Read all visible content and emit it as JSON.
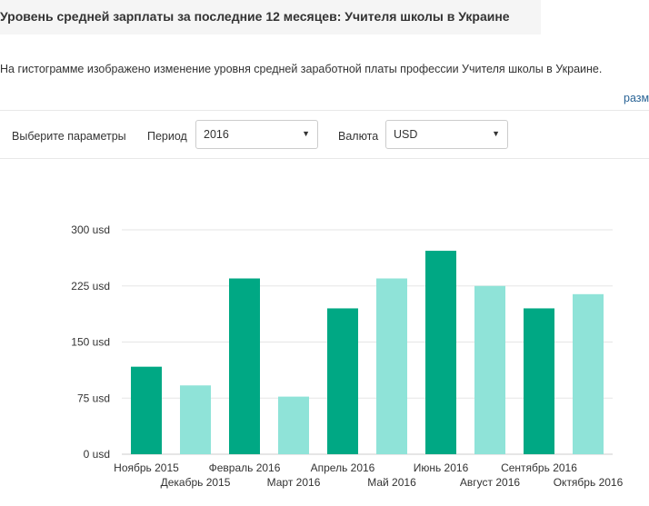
{
  "header": {
    "title": "Уровень средней зарплаты за последние 12 месяцев: Учителя школы в Украине",
    "description": "На гистограмме изображено изменение уровня средней заработной платы профессии Учителя школы в Украине.",
    "size_link": "разм"
  },
  "params": {
    "label": "Выберите параметры",
    "period_label": "Период",
    "period_value": "2016",
    "currency_label": "Валюта",
    "currency_value": "USD"
  },
  "icons": {
    "dropdown": "chevron-down-icon"
  },
  "colors": {
    "bar_dark": "#00a884",
    "bar_light": "#8fe3d8",
    "grid": "#e6e6e6",
    "link": "#2a6496"
  },
  "chart_data": {
    "type": "bar",
    "title": "",
    "xlabel": "",
    "ylabel": "",
    "categories": [
      "Ноябрь 2015",
      "Декабрь 2015",
      "Февраль 2016",
      "Март 2016",
      "Апрель 2016",
      "Май 2016",
      "Июнь 2016",
      "Август 2016",
      "Сентябрь 2016",
      "Октябрь 2016"
    ],
    "values": [
      117,
      92,
      235,
      77,
      195,
      235,
      272,
      225,
      195,
      214
    ],
    "bar_colors": [
      "dark",
      "light",
      "dark",
      "light",
      "dark",
      "light",
      "dark",
      "light",
      "dark",
      "light"
    ],
    "ylim": [
      0,
      300
    ],
    "yticks": [
      0,
      75,
      150,
      225,
      300
    ],
    "ytick_labels": [
      "0 usd",
      "75 usd",
      "150 usd",
      "225 usd",
      "300 usd"
    ],
    "grid": true,
    "legend": "none"
  }
}
